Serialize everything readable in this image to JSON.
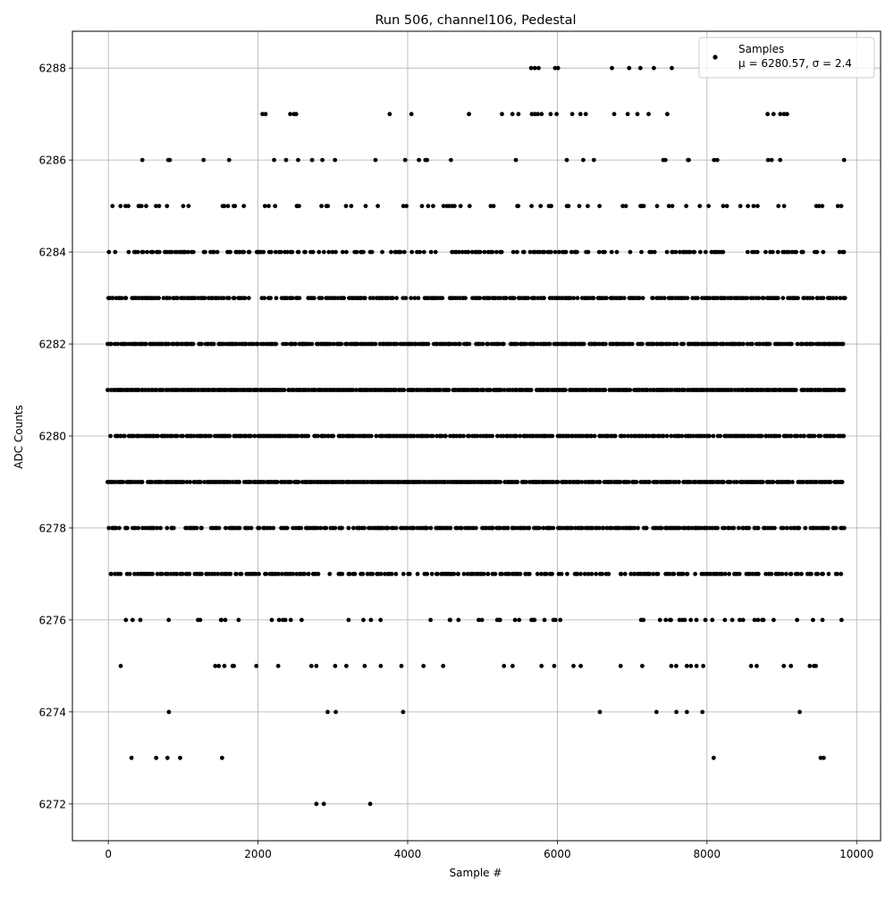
{
  "chart_data": {
    "type": "scatter",
    "title": "Run 506, channel106, Pedestal",
    "xlabel": "Sample #",
    "ylabel": "ADC Counts",
    "xlim": [
      -480,
      10320
    ],
    "ylim": [
      6271.2,
      6288.8
    ],
    "grid": true,
    "legend_position": "top-right",
    "x_ticks": [
      0,
      2000,
      4000,
      6000,
      8000,
      10000
    ],
    "y_ticks": [
      6272,
      6274,
      6276,
      6278,
      6280,
      6282,
      6284,
      6286,
      6288
    ],
    "x_tick_labels": [
      "0",
      "2000",
      "4000",
      "6000",
      "8000",
      "10000"
    ],
    "y_tick_labels": [
      "6272",
      "6274",
      "6276",
      "6278",
      "6280",
      "6282",
      "6284",
      "6286",
      "6288"
    ],
    "marker_color": "#000000",
    "series": [
      {
        "name": "Samples",
        "stats_label": "μ = 6280.57, σ = 2.4",
        "n_samples": 9850,
        "y_levels": [
          6272,
          6273,
          6274,
          6275,
          6276,
          6277,
          6278,
          6279,
          6280,
          6281,
          6282,
          6283,
          6284,
          6285,
          6286,
          6287,
          6288
        ],
        "sparse_points": {
          "6272": [
            2780,
            2880,
            3500
          ],
          "6273": [
            310,
            640,
            790,
            960,
            1520,
            8090,
            9520,
            9560
          ],
          "6288": [
            5650,
            5700,
            5750,
            5970,
            6010,
            6730,
            6960,
            7110,
            7290,
            7530
          ],
          "6287": [
            2060,
            2100,
            2430,
            2480,
            2510,
            3760,
            4050,
            4820,
            5260,
            5400,
            5480,
            5660,
            5700,
            5740,
            5790,
            5910,
            5990,
            6200,
            6310,
            6380,
            6760,
            6940,
            7070,
            7220,
            7470,
            8810,
            8890,
            8980,
            9030,
            9070
          ]
        },
        "dense_level_fill": {
          "6274": 0.03,
          "6275": 0.07,
          "6276": 0.16,
          "6277": 0.55,
          "6278": 0.7,
          "6279": 0.9,
          "6280": 0.8,
          "6281": 0.95,
          "6282": 0.8,
          "6283": 0.7,
          "6284": 0.45,
          "6285": 0.2,
          "6286": 0.06
        }
      }
    ]
  }
}
